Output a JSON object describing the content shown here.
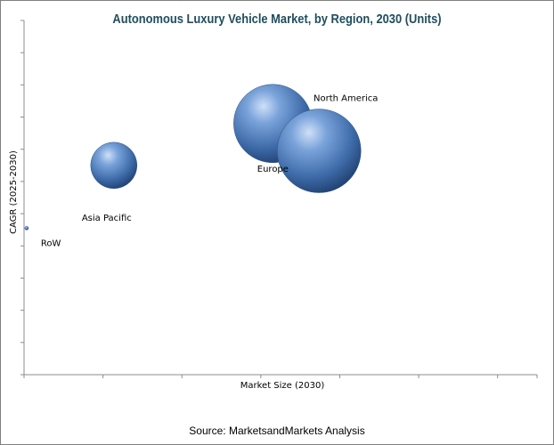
{
  "chart_data": {
    "type": "scatter",
    "title": "Autonomous Luxury Vehicle Market, by Region, 2030 (Units)",
    "xlabel": "Market Size (2030)",
    "ylabel": "CAGR (2025-2030)",
    "xlim": [
      0,
      10
    ],
    "ylim": [
      0,
      11
    ],
    "grid": false,
    "bubble_color": "#4f7fbf",
    "points": [
      {
        "label": "RoW",
        "x": 0.05,
        "y": 4.55,
        "size": 1
      },
      {
        "label": "Asia Pacific",
        "x": 1.75,
        "y": 6.5,
        "size": 26
      },
      {
        "label": "Europe",
        "x": 4.85,
        "y": 7.8,
        "size": 44
      },
      {
        "label": "North America",
        "x": 5.75,
        "y": 6.95,
        "size": 47
      }
    ]
  },
  "source": "Source: MarketsandMarkets Analysis"
}
